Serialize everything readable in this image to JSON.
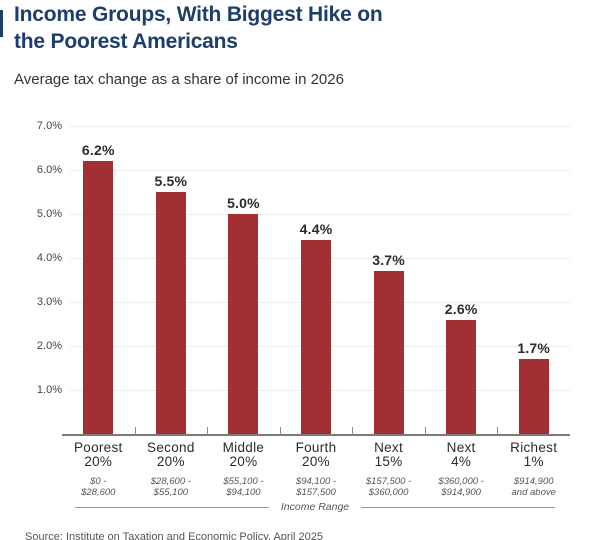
{
  "accent_color": "#1E3D6B",
  "header": {
    "title_lines": [
      "Income Groups, With Biggest Hike on",
      "the Poorest Americans"
    ],
    "subtitle": "Average tax change as a share of income in 2026"
  },
  "chart_data": {
    "type": "bar",
    "title": "Income Groups, With Biggest Hike on the Poorest Americans",
    "subtitle": "Average tax change as a share of income in 2026",
    "xlabel": "Income Range",
    "ylabel": "",
    "ylim": [
      0,
      7
    ],
    "y_ticks": [
      1,
      2,
      3,
      4,
      5,
      6,
      7
    ],
    "y_tick_labels": [
      "1.0%",
      "2.0%",
      "3.0%",
      "4.0%",
      "5.0%",
      "6.0%",
      "7.0%"
    ],
    "grid": true,
    "legend": "none",
    "bar_color": "#A23033",
    "categories": [
      {
        "group": "Poorest",
        "share": "20%",
        "range_lines": [
          "$0 -",
          "$28,600"
        ]
      },
      {
        "group": "Second",
        "share": "20%",
        "range_lines": [
          "$28,600 -",
          "$55,100"
        ]
      },
      {
        "group": "Middle",
        "share": "20%",
        "range_lines": [
          "$55,100 -",
          "$94,100"
        ]
      },
      {
        "group": "Fourth",
        "share": "20%",
        "range_lines": [
          "$94,100 -",
          "$157,500"
        ]
      },
      {
        "group": "Next",
        "share": "15%",
        "range_lines": [
          "$157,500 -",
          "$360,000"
        ]
      },
      {
        "group": "Next",
        "share": "4%",
        "range_lines": [
          "$360,000 -",
          "$914,900"
        ]
      },
      {
        "group": "Richest",
        "share": "1%",
        "range_lines": [
          "$914,900",
          "and above"
        ]
      }
    ],
    "values": [
      6.2,
      5.5,
      5.0,
      4.4,
      3.7,
      2.6,
      1.7
    ],
    "value_labels": [
      "6.2%",
      "5.5%",
      "5.0%",
      "4.4%",
      "3.7%",
      "2.6%",
      "1.7%"
    ]
  },
  "footer": {
    "source": "Source: Institute on Taxation and Economic Policy, April 2025"
  }
}
